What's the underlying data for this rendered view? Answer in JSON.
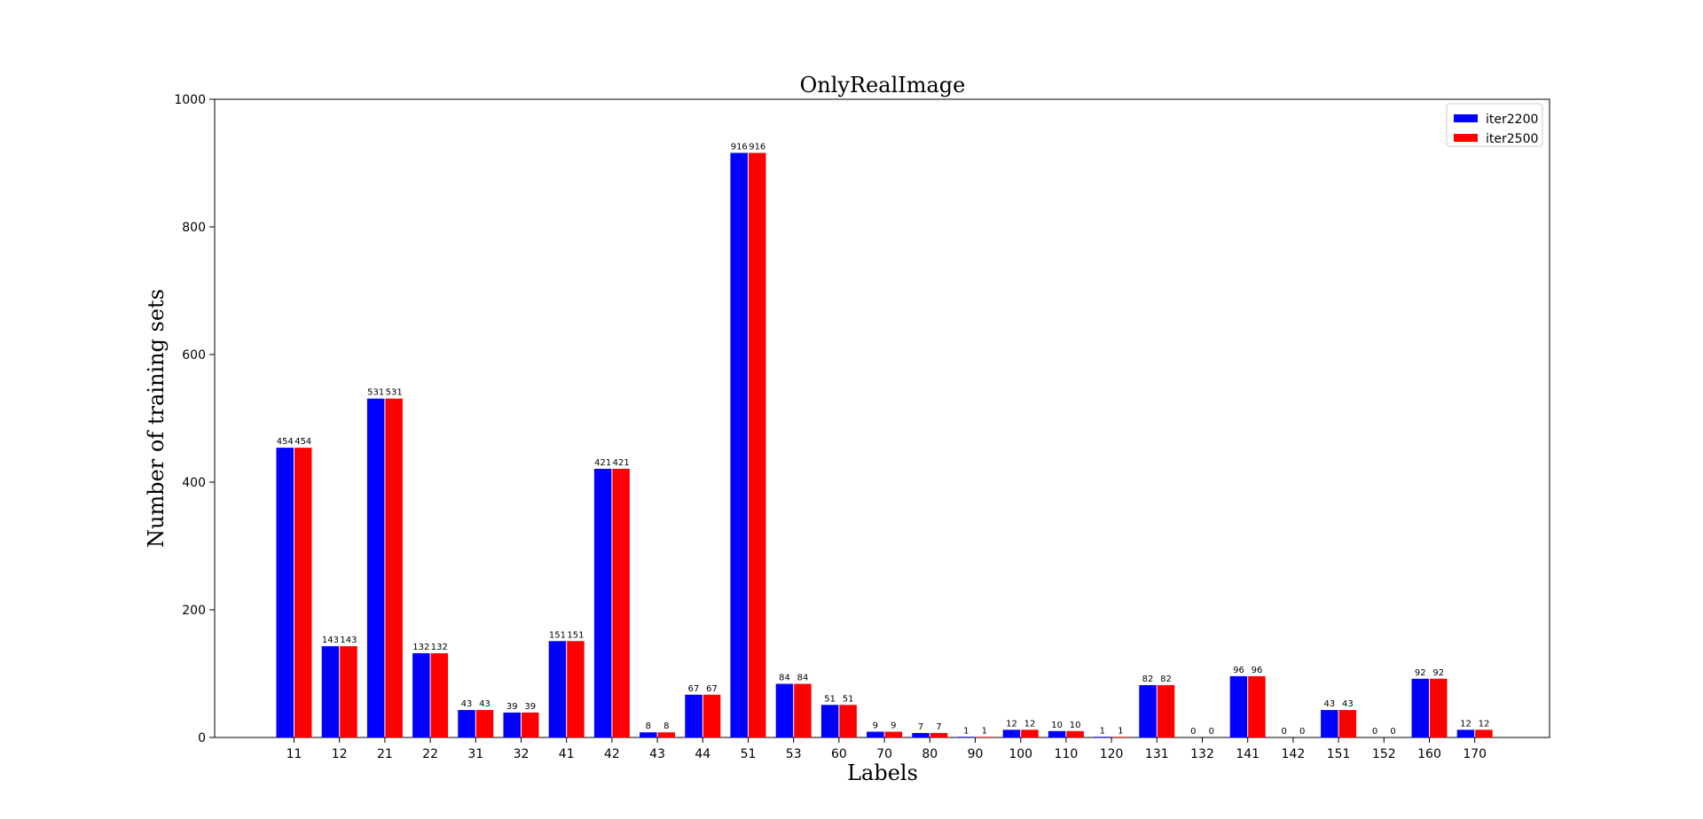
{
  "chart_data": {
    "type": "bar",
    "title": "OnlyRealImage",
    "xlabel": "Labels",
    "ylabel": "Number of training sets",
    "ylim": [
      0,
      1000
    ],
    "yticks": [
      0,
      200,
      400,
      600,
      800,
      1000
    ],
    "grid": false,
    "legend_position": "top-right",
    "categories": [
      "11",
      "12",
      "21",
      "22",
      "31",
      "32",
      "41",
      "42",
      "43",
      "44",
      "51",
      "53",
      "60",
      "70",
      "80",
      "90",
      "100",
      "110",
      "120",
      "131",
      "132",
      "141",
      "142",
      "151",
      "152",
      "160",
      "170"
    ],
    "series": [
      {
        "name": "iter2200",
        "color": "#0000ff",
        "values": [
          454,
          143,
          531,
          132,
          43,
          39,
          151,
          421,
          8,
          67,
          916,
          84,
          51,
          9,
          7,
          1,
          12,
          10,
          1,
          82,
          0,
          96,
          0,
          43,
          0,
          92,
          12
        ]
      },
      {
        "name": "iter2500",
        "color": "#ff0000",
        "values": [
          454,
          143,
          531,
          132,
          43,
          39,
          151,
          421,
          8,
          67,
          916,
          84,
          51,
          9,
          7,
          1,
          12,
          10,
          1,
          82,
          0,
          96,
          0,
          43,
          0,
          92,
          12
        ]
      }
    ]
  }
}
